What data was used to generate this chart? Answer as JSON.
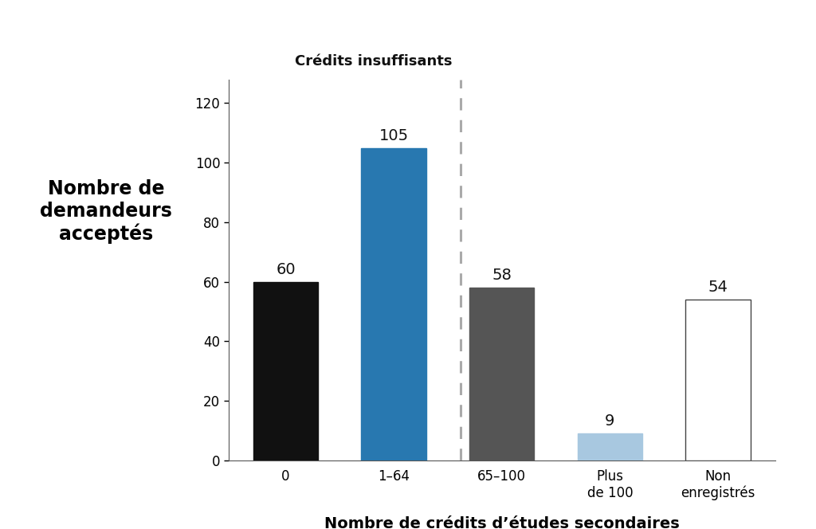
{
  "categories": [
    "0",
    "1–64",
    "65–100",
    "Plus\nde 100",
    "Non\nenregistrés"
  ],
  "values": [
    60,
    105,
    58,
    9,
    54
  ],
  "bar_colors": [
    "#111111",
    "#2878b0",
    "#555555",
    "#a8c8e0",
    "#ffffff"
  ],
  "bar_edgecolors": [
    "#111111",
    "#2878b0",
    "#555555",
    "#a8c8e0",
    "#444444"
  ],
  "ylabel": "Nombre de\ndemandeurs\nacceptés",
  "xlabel": "Nombre de crédits d’études secondaires",
  "ylim": [
    0,
    128
  ],
  "yticks": [
    0,
    20,
    40,
    60,
    80,
    100,
    120
  ],
  "annotation_label": "Crédits insuffisants",
  "dashed_line_x": 1.62,
  "background_color": "#ffffff",
  "ylabel_fontsize": 17,
  "xlabel_fontsize": 14,
  "value_fontsize": 14,
  "tick_fontsize": 12,
  "annotation_fontsize": 13
}
